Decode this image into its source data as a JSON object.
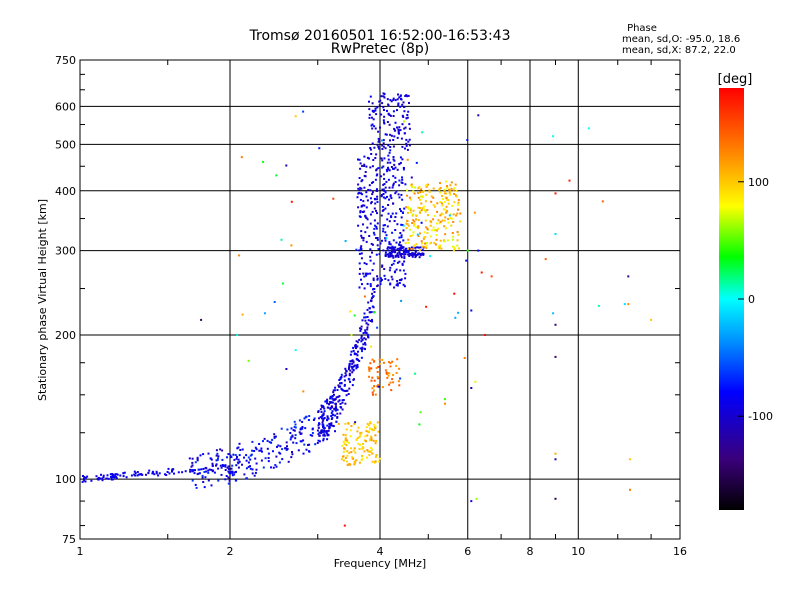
{
  "title_line1": "Tromsø 20160501 16:52:00-16:53:43",
  "title_line2": "RwPretec (8p)",
  "phase_box": {
    "header": "Phase",
    "line_o": "mean, sd,O: -95.0, 18.6",
    "line_x": "mean, sd,X:  87.2, 22.0"
  },
  "chart_data": {
    "type": "scatter",
    "xlabel": "Frequency [MHz]",
    "ylabel": "Stationary phase Virtual Height [km]",
    "x_scale": "log",
    "y_scale": "log",
    "xlim": [
      1,
      16
    ],
    "ylim": [
      75,
      750
    ],
    "x_ticks": [
      {
        "value": 1,
        "label": "1"
      },
      {
        "value": 2,
        "label": "2"
      },
      {
        "value": 4,
        "label": "4"
      },
      {
        "value": 6,
        "label": "6"
      },
      {
        "value": 8,
        "label": "8"
      },
      {
        "value": 10,
        "label": "10"
      },
      {
        "value": 16,
        "label": "16"
      }
    ],
    "y_ticks": [
      {
        "value": 75,
        "label": "75"
      },
      {
        "value": 100,
        "label": "100"
      },
      {
        "value": 200,
        "label": "200"
      },
      {
        "value": 300,
        "label": "300"
      },
      {
        "value": 400,
        "label": "400"
      },
      {
        "value": 500,
        "label": "500"
      },
      {
        "value": 600,
        "label": "600"
      },
      {
        "value": 750,
        "label": "750"
      }
    ],
    "grid": true,
    "colorbar": {
      "label": "[deg]",
      "range": [
        -180,
        180
      ],
      "ticks": [
        {
          "value": 100,
          "label": "100"
        },
        {
          "value": 0,
          "label": "0"
        },
        {
          "value": -100,
          "label": "-100"
        }
      ],
      "colormap": "rainbow"
    },
    "clusters": [
      {
        "name": "low-trace",
        "n": 110,
        "x": [
          1.0,
          2.0
        ],
        "y": [
          100,
          106
        ],
        "phase": [
          -100,
          -80
        ]
      },
      {
        "name": "e-rise",
        "n": 260,
        "x": [
          1.65,
          3.3
        ],
        "y": [
          104,
          135
        ],
        "phase": [
          -110,
          -60
        ]
      },
      {
        "name": "f1-rise",
        "n": 280,
        "x": [
          3.0,
          3.9
        ],
        "y": [
          130,
          240
        ],
        "phase": [
          -115,
          -70
        ]
      },
      {
        "name": "f-vertical",
        "n": 340,
        "x": [
          3.6,
          4.5
        ],
        "y": [
          250,
          480
        ],
        "phase": [
          -110,
          -70
        ]
      },
      {
        "name": "f-top",
        "n": 140,
        "x": [
          3.8,
          4.6
        ],
        "y": [
          480,
          640
        ],
        "phase": [
          -110,
          -80
        ]
      },
      {
        "name": "f-band",
        "n": 110,
        "x": [
          4.1,
          4.9
        ],
        "y": [
          290,
          305
        ],
        "phase": [
          -105,
          -80
        ]
      },
      {
        "name": "x-cluster",
        "n": 230,
        "x": [
          4.5,
          5.8
        ],
        "y": [
          300,
          420
        ],
        "phase": [
          70,
          130
        ]
      },
      {
        "name": "x-low",
        "n": 120,
        "x": [
          3.3,
          4.0
        ],
        "y": [
          107,
          132
        ],
        "phase": [
          80,
          120
        ]
      },
      {
        "name": "x-mid",
        "n": 55,
        "x": [
          3.8,
          4.4
        ],
        "y": [
          150,
          178
        ],
        "phase": [
          110,
          155
        ]
      },
      {
        "name": "scatter",
        "n": 60,
        "x": [
          2.0,
          6.3
        ],
        "y": [
          130,
          600
        ],
        "phase": [
          -120,
          180
        ]
      }
    ],
    "sparse_points": [
      {
        "x": 6.3,
        "y": 575,
        "phase": -110
      },
      {
        "x": 6.1,
        "y": 90,
        "phase": -100
      },
      {
        "x": 6.25,
        "y": 91,
        "phase": 60
      },
      {
        "x": 6.3,
        "y": 300,
        "phase": -90
      },
      {
        "x": 6.4,
        "y": 270,
        "phase": 170
      },
      {
        "x": 6.5,
        "y": 200,
        "phase": 175
      },
      {
        "x": 6.1,
        "y": 155,
        "phase": -110
      },
      {
        "x": 6.1,
        "y": 225,
        "phase": -90
      },
      {
        "x": 6.0,
        "y": 300,
        "phase": 40
      },
      {
        "x": 6.7,
        "y": 265,
        "phase": 150
      },
      {
        "x": 6.2,
        "y": 360,
        "phase": 120
      },
      {
        "x": 8.9,
        "y": 520,
        "phase": 0
      },
      {
        "x": 9.0,
        "y": 395,
        "phase": 170
      },
      {
        "x": 9.0,
        "y": 325,
        "phase": -10
      },
      {
        "x": 9.0,
        "y": 210,
        "phase": -130
      },
      {
        "x": 9.0,
        "y": 180,
        "phase": -140
      },
      {
        "x": 9.0,
        "y": 110,
        "phase": -120
      },
      {
        "x": 9.0,
        "y": 91,
        "phase": -150
      },
      {
        "x": 8.6,
        "y": 288,
        "phase": 140
      },
      {
        "x": 9.6,
        "y": 420,
        "phase": 170
      },
      {
        "x": 8.9,
        "y": 222,
        "phase": -20
      },
      {
        "x": 10.5,
        "y": 540,
        "phase": 0
      },
      {
        "x": 11.2,
        "y": 380,
        "phase": 140
      },
      {
        "x": 12.6,
        "y": 265,
        "phase": -130
      },
      {
        "x": 12.4,
        "y": 232,
        "phase": -10
      },
      {
        "x": 11.0,
        "y": 230,
        "phase": 10
      },
      {
        "x": 12.6,
        "y": 232,
        "phase": 120
      },
      {
        "x": 14.0,
        "y": 215,
        "phase": 100
      },
      {
        "x": 12.7,
        "y": 110,
        "phase": 100
      },
      {
        "x": 12.7,
        "y": 95,
        "phase": 130
      },
      {
        "x": 9.0,
        "y": 113,
        "phase": 110
      },
      {
        "x": 1.75,
        "y": 215,
        "phase": -140
      },
      {
        "x": 2.35,
        "y": 222,
        "phase": -30
      },
      {
        "x": 3.4,
        "y": 80,
        "phase": 175
      }
    ]
  }
}
